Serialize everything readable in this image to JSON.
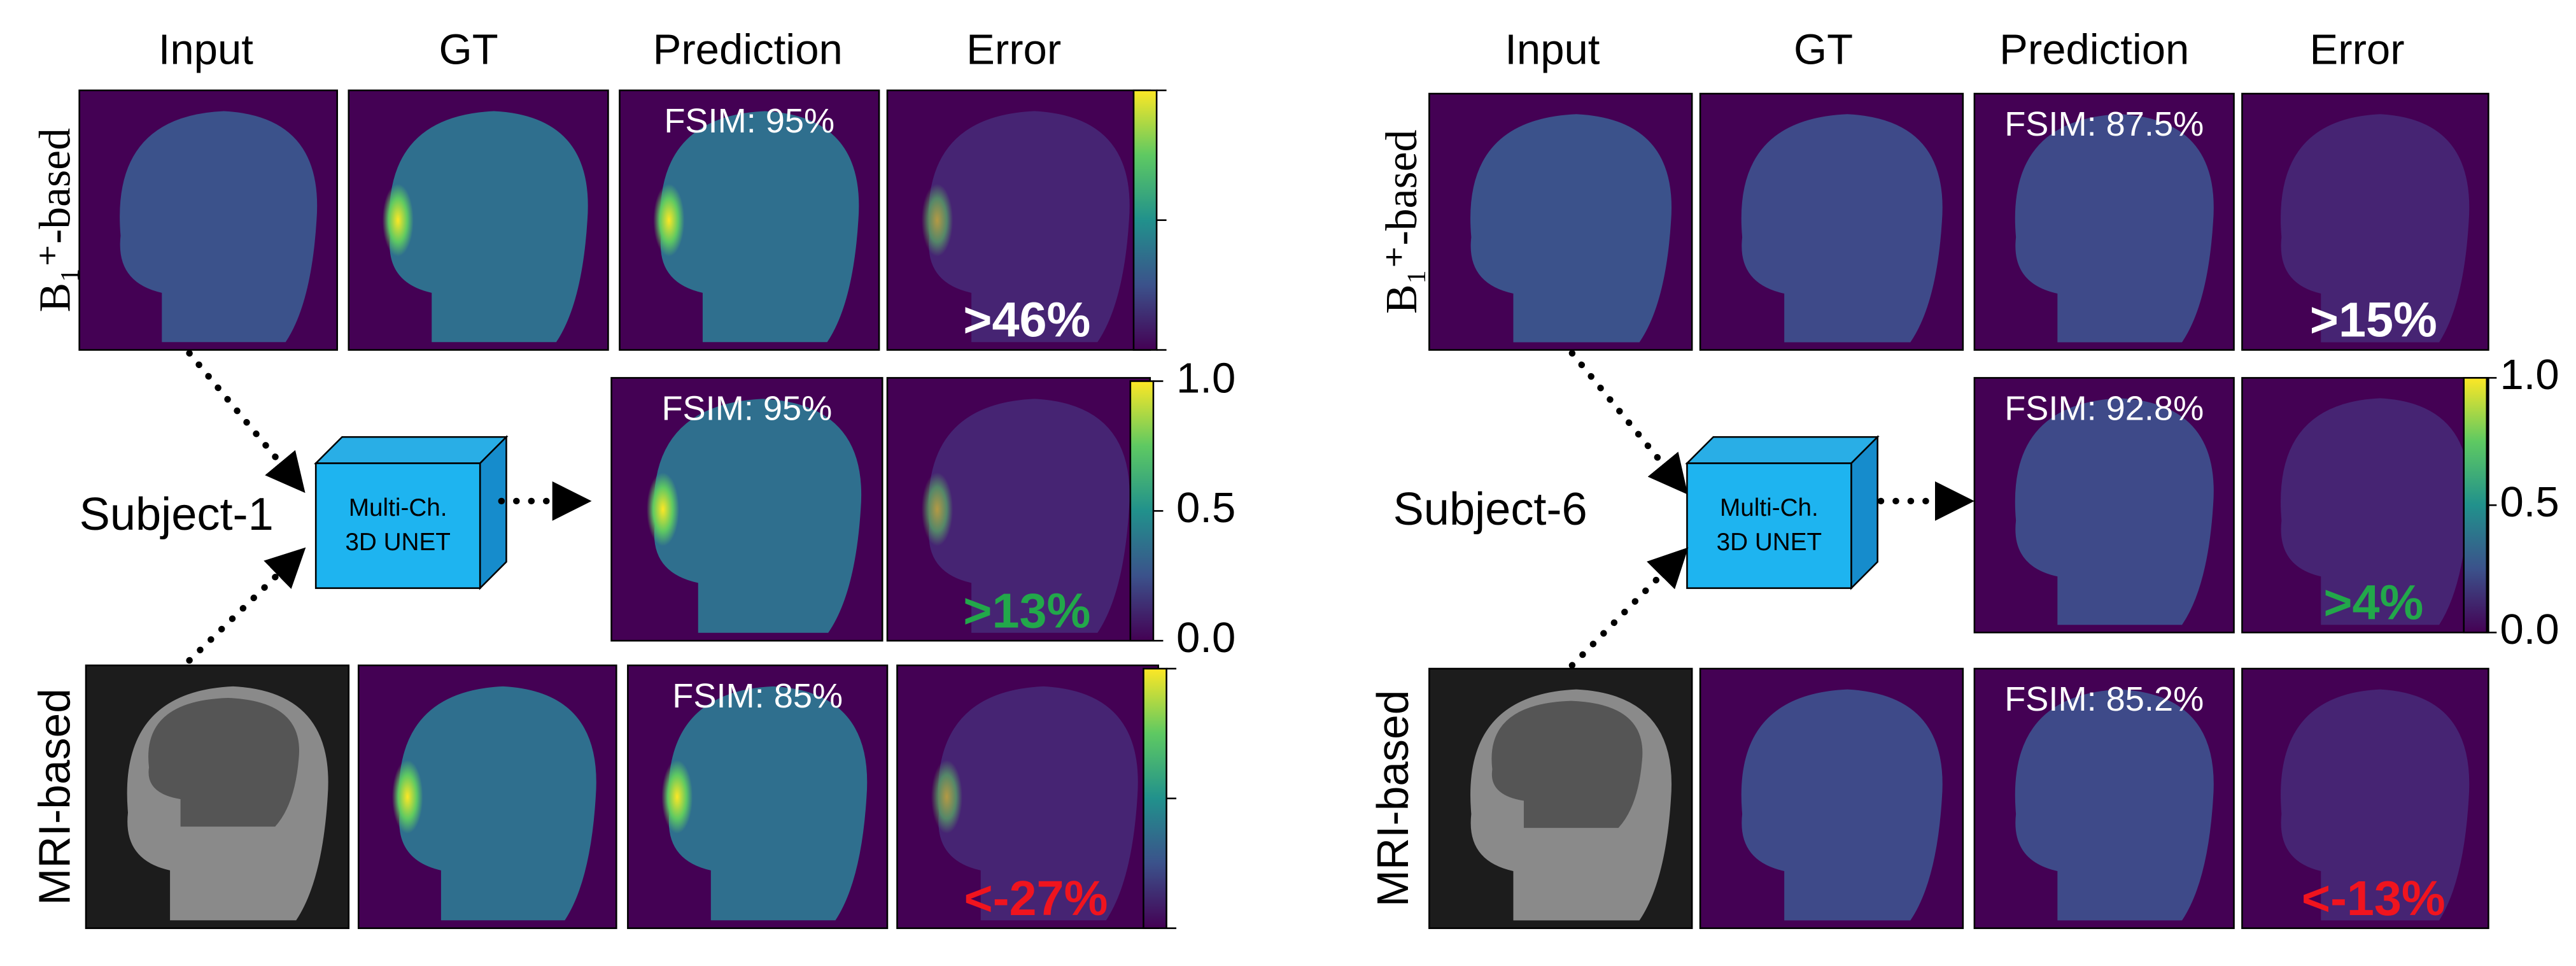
{
  "panels": [
    {
      "subject": "Subject-1",
      "columns": [
        "Input",
        "GT",
        "Prediction",
        "Error"
      ],
      "row_labels": [
        "B₁⁺-based",
        "MRI-based"
      ],
      "network": [
        "Multi-Ch.",
        "3D UNET"
      ],
      "fsim": [
        "FSIM: 95%",
        "FSIM: 95%",
        "FSIM: 85%"
      ],
      "errors": [
        ">46%",
        ">13%",
        "<-27%"
      ],
      "colorbar_ticks": [
        "1.0",
        "0.5",
        "0.0"
      ]
    },
    {
      "subject": "Subject-6",
      "columns": [
        "Input",
        "GT",
        "Prediction",
        "Error"
      ],
      "row_labels": [
        "B₁⁺-based",
        "MRI-based"
      ],
      "network": [
        "Multi-Ch.",
        "3D UNET"
      ],
      "fsim": [
        "FSIM: 87.5%",
        "FSIM: 92.8%",
        "FSIM: 85.2%"
      ],
      "errors": [
        ">15%",
        ">4%",
        "<-13%"
      ],
      "colorbar_ticks": [
        "1.0",
        "0.5",
        "0.0"
      ]
    }
  ]
}
